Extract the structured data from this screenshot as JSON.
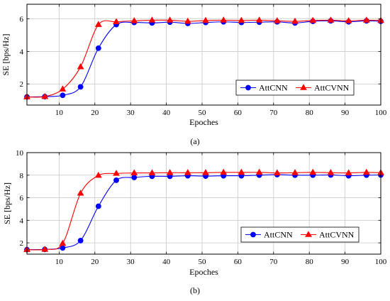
{
  "chart_data": [
    {
      "type": "line",
      "panel_caption": "(a)",
      "xlabel": "Epoches",
      "ylabel": "SE [bps/Hz]",
      "xlim": [
        1,
        100
      ],
      "ylim": [
        0.7,
        6.9
      ],
      "xticks": [
        10,
        20,
        30,
        40,
        50,
        60,
        70,
        80,
        90,
        100
      ],
      "yticks": [
        2,
        4,
        6
      ],
      "grid": true,
      "legend_position": "bottom-right",
      "series": [
        {
          "name": "AttCNN",
          "color": "#0000ff",
          "marker": "circle",
          "x": [
            1,
            6,
            11,
            16,
            21,
            26,
            31,
            36,
            41,
            46,
            51,
            56,
            61,
            66,
            71,
            76,
            81,
            86,
            91,
            96,
            100
          ],
          "y": [
            1.2,
            1.22,
            1.3,
            1.82,
            4.2,
            5.65,
            5.78,
            5.75,
            5.8,
            5.72,
            5.78,
            5.82,
            5.78,
            5.8,
            5.82,
            5.75,
            5.85,
            5.88,
            5.82,
            5.88,
            5.85
          ]
        },
        {
          "name": "AttCVNN",
          "color": "#ff0000",
          "marker": "triangle",
          "x": [
            1,
            6,
            11,
            16,
            21,
            26,
            31,
            36,
            41,
            46,
            51,
            56,
            61,
            66,
            71,
            76,
            81,
            86,
            91,
            96,
            100
          ],
          "y": [
            1.2,
            1.22,
            1.68,
            3.05,
            5.65,
            5.82,
            5.88,
            5.92,
            5.92,
            5.85,
            5.9,
            5.92,
            5.9,
            5.92,
            5.88,
            5.85,
            5.9,
            5.92,
            5.88,
            5.92,
            5.9
          ]
        }
      ]
    },
    {
      "type": "line",
      "panel_caption": "(b)",
      "xlabel": "Epoches",
      "ylabel": "SE [bps/Hz]",
      "xlim": [
        1,
        100
      ],
      "ylim": [
        1,
        10
      ],
      "xticks": [
        10,
        20,
        30,
        40,
        50,
        60,
        70,
        80,
        90,
        100
      ],
      "yticks": [
        2,
        4,
        6,
        8,
        10
      ],
      "grid": true,
      "legend_position": "bottom-right",
      "series": [
        {
          "name": "AttCNN",
          "color": "#0000ff",
          "marker": "circle",
          "x": [
            1,
            6,
            11,
            16,
            21,
            26,
            31,
            36,
            41,
            46,
            51,
            56,
            61,
            66,
            71,
            76,
            81,
            86,
            91,
            96,
            100
          ],
          "y": [
            1.4,
            1.42,
            1.55,
            2.2,
            5.25,
            7.55,
            7.8,
            7.9,
            7.9,
            7.95,
            7.92,
            7.95,
            7.95,
            8.0,
            8.05,
            8.0,
            8.0,
            8.02,
            7.95,
            8.0,
            8.02
          ]
        },
        {
          "name": "AttCVNN",
          "color": "#ff0000",
          "marker": "triangle",
          "x": [
            1,
            6,
            11,
            16,
            21,
            26,
            31,
            36,
            41,
            46,
            51,
            56,
            61,
            66,
            71,
            76,
            81,
            86,
            91,
            96,
            100
          ],
          "y": [
            1.4,
            1.42,
            1.95,
            6.4,
            7.98,
            8.15,
            8.2,
            8.2,
            8.22,
            8.22,
            8.22,
            8.25,
            8.25,
            8.25,
            8.2,
            8.22,
            8.25,
            8.22,
            8.2,
            8.25,
            8.22
          ]
        }
      ]
    }
  ]
}
